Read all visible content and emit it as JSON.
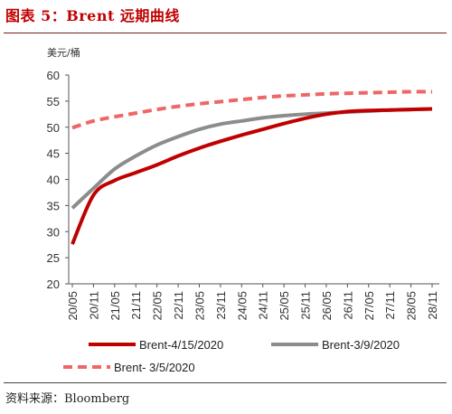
{
  "header": {
    "title": "图表 5：Brent 远期曲线"
  },
  "footer": {
    "source": "资料来源：Bloomberg"
  },
  "chart_data": {
    "type": "line",
    "title": "Brent 远期曲线",
    "ylabel": "美元/桶",
    "xlabel": "",
    "ylim": [
      20,
      60
    ],
    "yticks": [
      20,
      25,
      30,
      35,
      40,
      45,
      50,
      55,
      60
    ],
    "grid": false,
    "legend_position": "bottom",
    "categories": [
      "20/05",
      "20/11",
      "21/05",
      "21/11",
      "22/05",
      "22/11",
      "23/05",
      "23/11",
      "24/05",
      "24/11",
      "25/05",
      "25/11",
      "26/05",
      "26/11",
      "27/05",
      "27/11",
      "28/05",
      "28/11"
    ],
    "series": [
      {
        "name": "Brent-4/15/2020",
        "color": "#c00000",
        "style": "solid",
        "values": [
          27.6,
          37.0,
          39.8,
          41.3,
          42.8,
          44.5,
          46.0,
          47.3,
          48.5,
          49.6,
          50.7,
          51.7,
          52.5,
          53.0,
          53.2,
          53.3,
          53.4,
          53.5
        ]
      },
      {
        "name": "Brent-3/9/2020",
        "color": "#8c8c8c",
        "style": "solid",
        "values": [
          34.5,
          38.3,
          42.0,
          44.5,
          46.6,
          48.2,
          49.6,
          50.6,
          51.2,
          51.8,
          52.2,
          52.5,
          52.7,
          52.9,
          53.1,
          53.3,
          53.4,
          53.5
        ]
      },
      {
        "name": "Brent- 3/5/2020",
        "color": "#ee6666",
        "style": "dashed",
        "values": [
          49.9,
          51.2,
          52.0,
          52.7,
          53.4,
          54.0,
          54.5,
          54.9,
          55.3,
          55.7,
          56.0,
          56.2,
          56.4,
          56.5,
          56.6,
          56.7,
          56.8,
          56.8
        ]
      }
    ]
  }
}
